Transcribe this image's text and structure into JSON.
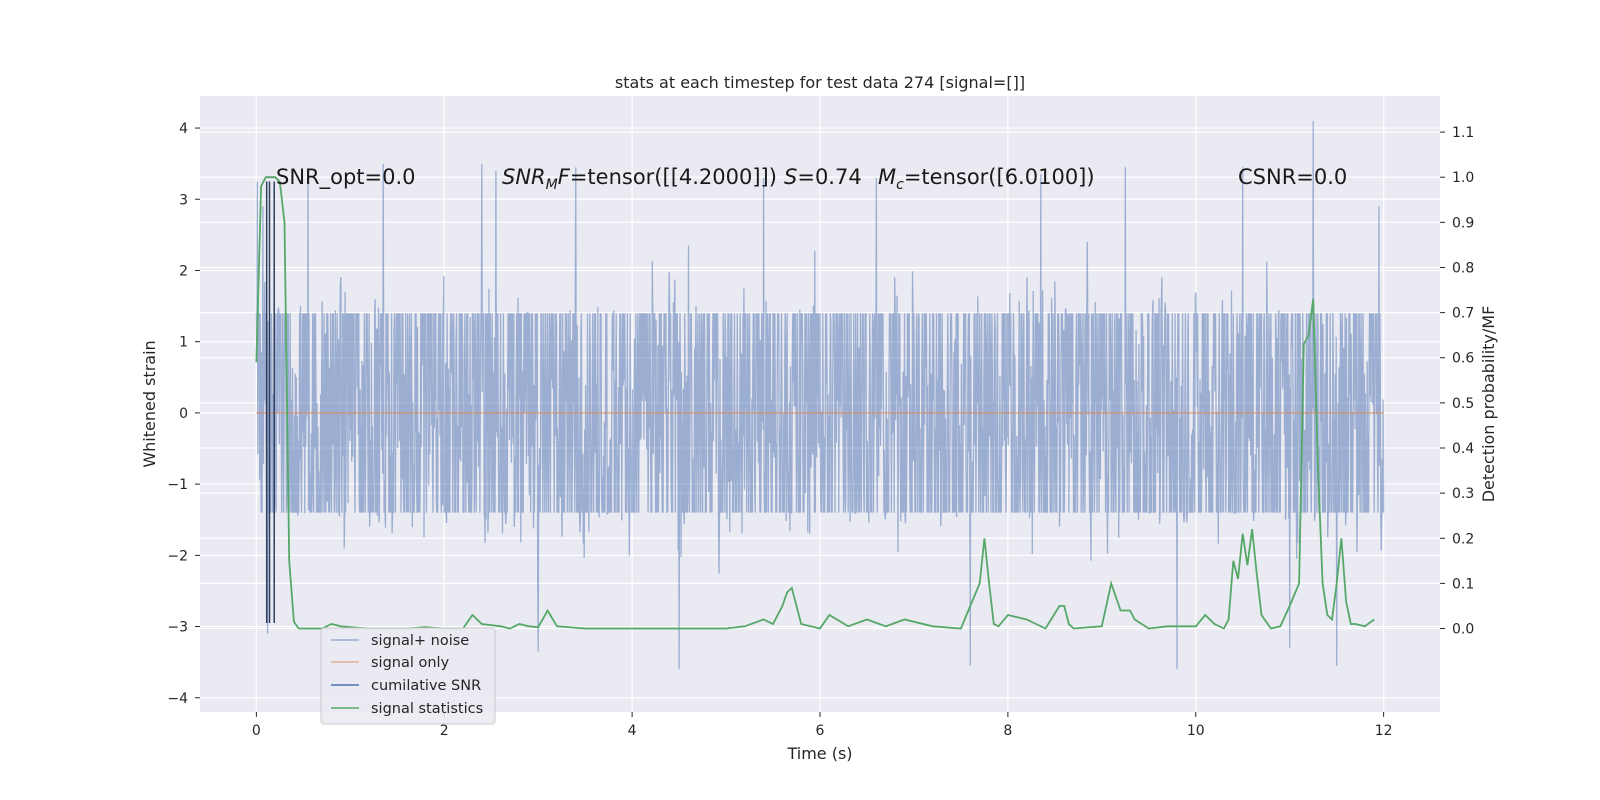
{
  "chart_data": {
    "type": "line",
    "title": "stats at each timestep for test data 274 [signal=[]]",
    "xlabel": "Time (s)",
    "ylabel": "Whitened strain",
    "y2label": "Detection probability/MF",
    "xlim": [
      -0.6,
      12.6
    ],
    "ylim": [
      -4.2,
      4.45
    ],
    "y2lim": [
      -0.185,
      1.18
    ],
    "x_ticks": [
      0,
      2,
      4,
      6,
      8,
      10,
      12
    ],
    "y_ticks": [
      -4,
      -3,
      -2,
      -1,
      0,
      1,
      2,
      3,
      4
    ],
    "y2_ticks": [
      0.0,
      0.1,
      0.2,
      0.3,
      0.4,
      0.5,
      0.6,
      0.7,
      0.8,
      0.9,
      1.0,
      1.1
    ],
    "x_tick_labels": [
      "0",
      "2",
      "4",
      "6",
      "8",
      "10",
      "12"
    ],
    "y_tick_labels": [
      "−4",
      "−3",
      "−2",
      "−1",
      "0",
      "1",
      "2",
      "3",
      "4"
    ],
    "y2_tick_labels": [
      "0.0",
      "0.1",
      "0.2",
      "0.3",
      "0.4",
      "0.5",
      "0.6",
      "0.7",
      "0.8",
      "0.9",
      "1.0",
      "1.1"
    ],
    "grid": true,
    "legend_placement": "lower-left",
    "annotations": {
      "snr_opt": "SNR_opt=0.0",
      "snr_mf_main": "SNR",
      "snr_mf_sub": "M",
      "snr_mf_f": "F",
      "snr_mf_value": "=tensor([[4.2000]])",
      "s_symbol": "S",
      "s_value": "=0.74",
      "mc_symbol": "M",
      "mc_sub": "c",
      "mc_value": "=tensor([6.0100])",
      "csnr": "CSNR=0.0"
    },
    "series": [
      {
        "name": "signal+ noise",
        "color": "#4c72b0",
        "opacity": 0.5,
        "x_range": [
          0,
          12
        ],
        "envelope_upper_core": 1.4,
        "envelope_lower_core": -1.4,
        "peaks": [
          {
            "x": 0.01,
            "y": 3.25
          },
          {
            "x": 0.07,
            "y": 2.9
          },
          {
            "x": 0.12,
            "y": -3.1
          },
          {
            "x": 0.55,
            "y": 3.4
          },
          {
            "x": 1.35,
            "y": 3.5
          },
          {
            "x": 2.4,
            "y": 3.5
          },
          {
            "x": 2.55,
            "y": 3.4
          },
          {
            "x": 3.0,
            "y": -3.35
          },
          {
            "x": 3.4,
            "y": 3.45
          },
          {
            "x": 4.5,
            "y": -3.6
          },
          {
            "x": 5.4,
            "y": 3.3
          },
          {
            "x": 6.6,
            "y": 3.3
          },
          {
            "x": 7.6,
            "y": -3.55
          },
          {
            "x": 8.35,
            "y": 3.35
          },
          {
            "x": 9.25,
            "y": 3.45
          },
          {
            "x": 9.8,
            "y": -3.6
          },
          {
            "x": 10.5,
            "y": 3.45
          },
          {
            "x": 11.0,
            "y": -3.3
          },
          {
            "x": 11.25,
            "y": 4.1
          },
          {
            "x": 11.5,
            "y": -3.55
          },
          {
            "x": 11.95,
            "y": 2.9
          }
        ]
      },
      {
        "name": "signal only",
        "color": "#dd8452",
        "x": [
          0,
          12
        ],
        "values": [
          0,
          0
        ]
      },
      {
        "name": "cumilative SNR",
        "color": "#4c72b0",
        "x": [
          0.11,
          0.11,
          0.14,
          0.14,
          0.19,
          0.19
        ],
        "values": [
          -2.95,
          3.25,
          -2.95,
          3.25,
          -2.95,
          3.25
        ]
      },
      {
        "name": "signal statistics",
        "color": "#55a868",
        "axis": "right",
        "x": [
          0.0,
          0.05,
          0.1,
          0.15,
          0.2,
          0.25,
          0.3,
          0.35,
          0.4,
          0.45,
          0.5,
          0.6,
          0.7,
          0.8,
          0.9,
          1.0,
          1.2,
          1.4,
          1.6,
          1.8,
          2.0,
          2.1,
          2.2,
          2.3,
          2.4,
          2.6,
          2.7,
          2.8,
          2.9,
          3.0,
          3.1,
          3.2,
          3.5,
          4.0,
          4.5,
          5.0,
          5.2,
          5.4,
          5.5,
          5.6,
          5.65,
          5.7,
          5.8,
          6.0,
          6.1,
          6.3,
          6.5,
          6.7,
          6.9,
          7.2,
          7.5,
          7.6,
          7.7,
          7.75,
          7.8,
          7.85,
          7.9,
          8.0,
          8.2,
          8.4,
          8.55,
          8.6,
          8.65,
          8.7,
          9.0,
          9.1,
          9.2,
          9.3,
          9.35,
          9.5,
          9.7,
          9.8,
          10.0,
          10.1,
          10.2,
          10.3,
          10.35,
          10.4,
          10.45,
          10.5,
          10.55,
          10.6,
          10.65,
          10.7,
          10.8,
          10.9,
          11.0,
          11.1,
          11.15,
          11.2,
          11.25,
          11.3,
          11.35,
          11.4,
          11.45,
          11.5,
          11.55,
          11.6,
          11.65,
          11.7,
          11.8,
          11.9
        ],
        "values": [
          0.59,
          0.98,
          1.0,
          1.0,
          1.0,
          0.99,
          0.9,
          0.15,
          0.015,
          0.0,
          0.0,
          0.0,
          0.0,
          0.01,
          0.005,
          0.003,
          0.0,
          0.0,
          0.0,
          0.003,
          0.0,
          0.0,
          0.0,
          0.03,
          0.01,
          0.005,
          0.0,
          0.01,
          0.005,
          0.003,
          0.04,
          0.005,
          0.0,
          0.0,
          0.0,
          0.0,
          0.005,
          0.02,
          0.01,
          0.05,
          0.08,
          0.09,
          0.01,
          0.0,
          0.03,
          0.005,
          0.02,
          0.005,
          0.02,
          0.005,
          0.0,
          0.05,
          0.1,
          0.2,
          0.1,
          0.01,
          0.005,
          0.03,
          0.02,
          0.0,
          0.05,
          0.05,
          0.01,
          0.0,
          0.005,
          0.1,
          0.04,
          0.04,
          0.02,
          0.0,
          0.005,
          0.005,
          0.005,
          0.03,
          0.01,
          0.0,
          0.02,
          0.15,
          0.11,
          0.21,
          0.14,
          0.22,
          0.12,
          0.03,
          0.0,
          0.005,
          0.05,
          0.1,
          0.63,
          0.65,
          0.73,
          0.36,
          0.1,
          0.03,
          0.02,
          0.1,
          0.2,
          0.06,
          0.01,
          0.01,
          0.005,
          0.02
        ]
      }
    ]
  }
}
